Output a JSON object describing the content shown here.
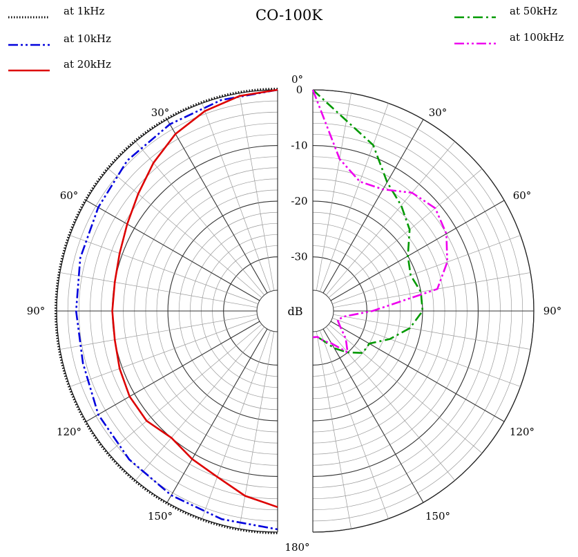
{
  "chart_data": {
    "type": "polar",
    "title": "CO-100K",
    "unit_label": "dB",
    "radial_ticks": [
      0,
      -10,
      -20,
      -30
    ],
    "radial_range": [
      -36,
      0
    ],
    "angle_labels": [
      "0°",
      "30°",
      "60°",
      "90°",
      "120°",
      "150°",
      "180°"
    ],
    "legend_placement": "top",
    "series": [
      {
        "name": "at 1kHz",
        "color": "#000000",
        "style": "dotted",
        "side": "left",
        "angles": [
          0,
          180
        ],
        "values": [
          0,
          0
        ]
      },
      {
        "name": "at 10kHz",
        "color": "#0000dd",
        "style": "dash-dot-dot",
        "side": "left",
        "angles": [
          0,
          15,
          30,
          45,
          60,
          75,
          90,
          105,
          120,
          135,
          150,
          165,
          180
        ],
        "values": [
          0,
          -0.5,
          -1,
          -1.5,
          -2.5,
          -3,
          -3.5,
          -3.5,
          -2.5,
          -2,
          -1.5,
          -1,
          -0.5
        ]
      },
      {
        "name": "at 20kHz",
        "color": "#dd0000",
        "style": "solid",
        "side": "left",
        "angles": [
          0,
          10,
          20,
          30,
          40,
          50,
          60,
          70,
          80,
          90,
          100,
          110,
          120,
          130,
          140,
          150,
          160,
          170,
          180
        ],
        "values": [
          0,
          -0.5,
          -1.5,
          -3,
          -5,
          -7,
          -8.5,
          -9.5,
          -10,
          -10,
          -10,
          -9.5,
          -9,
          -9,
          -10,
          -9,
          -8,
          -6,
          -4.5
        ]
      },
      {
        "name": "at 50kHz",
        "color": "#009900",
        "style": "dash-dot",
        "side": "right",
        "angles": [
          0,
          10,
          20,
          30,
          40,
          50,
          60,
          70,
          80,
          90,
          100,
          110,
          120,
          130,
          140,
          150,
          160,
          170,
          180
        ],
        "values": [
          0,
          -5,
          -8,
          -13,
          -15,
          -17,
          -20,
          -21,
          -20,
          -20,
          -22,
          -25,
          -28,
          -28,
          -30,
          -32,
          -34,
          -35,
          -35
        ]
      },
      {
        "name": "at 100kHz",
        "color": "#ee00ee",
        "style": "dash-dot-dot",
        "side": "right",
        "angles": [
          0,
          10,
          20,
          30,
          40,
          50,
          60,
          70,
          80,
          90,
          100,
          110,
          120,
          130,
          140,
          150,
          160,
          170,
          180
        ],
        "values": [
          0,
          -12,
          -15,
          -14.5,
          -12,
          -11,
          -12,
          -14,
          -17,
          -29,
          -34,
          -35,
          -34,
          -32,
          -30,
          -33,
          -34,
          -35,
          -35
        ]
      }
    ]
  }
}
